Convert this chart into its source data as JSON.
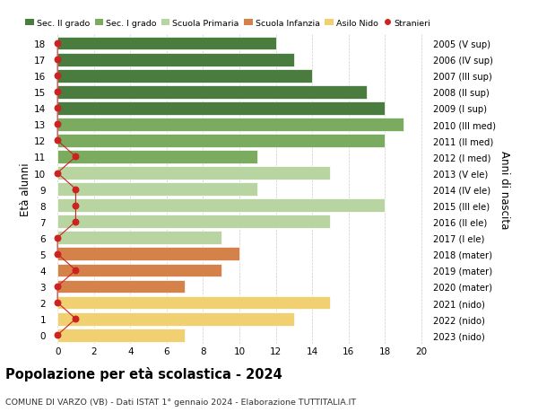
{
  "ages": [
    18,
    17,
    16,
    15,
    14,
    13,
    12,
    11,
    10,
    9,
    8,
    7,
    6,
    5,
    4,
    3,
    2,
    1,
    0
  ],
  "years": [
    "2005 (V sup)",
    "2006 (IV sup)",
    "2007 (III sup)",
    "2008 (II sup)",
    "2009 (I sup)",
    "2010 (III med)",
    "2011 (II med)",
    "2012 (I med)",
    "2013 (V ele)",
    "2014 (IV ele)",
    "2015 (III ele)",
    "2016 (II ele)",
    "2017 (I ele)",
    "2018 (mater)",
    "2019 (mater)",
    "2020 (mater)",
    "2021 (nido)",
    "2022 (nido)",
    "2023 (nido)"
  ],
  "values": [
    12,
    13,
    14,
    17,
    18,
    19,
    18,
    11,
    15,
    11,
    18,
    15,
    9,
    10,
    9,
    7,
    15,
    13,
    7
  ],
  "colors": [
    "#4a7c3f",
    "#4a7c3f",
    "#4a7c3f",
    "#4a7c3f",
    "#4a7c3f",
    "#7aab5e",
    "#7aab5e",
    "#7aab5e",
    "#b8d4a0",
    "#b8d4a0",
    "#b8d4a0",
    "#b8d4a0",
    "#b8d4a0",
    "#d4824a",
    "#d4824a",
    "#d4824a",
    "#f0d070",
    "#f0d070",
    "#f0d070"
  ],
  "stranieri_x": [
    0,
    0,
    0,
    0,
    0,
    0,
    0,
    1,
    0,
    1,
    1,
    1,
    0,
    0,
    1,
    0,
    0,
    1,
    0
  ],
  "legend_labels": [
    "Sec. II grado",
    "Sec. I grado",
    "Scuola Primaria",
    "Scuola Infanzia",
    "Asilo Nido",
    "Stranieri"
  ],
  "legend_colors": [
    "#4a7c3f",
    "#7aab5e",
    "#b8d4a0",
    "#d4824a",
    "#f0d070",
    "#cc2222"
  ],
  "title": "Popolazione per età scolastica - 2024",
  "subtitle": "COMUNE DI VARZO (VB) - Dati ISTAT 1° gennaio 2024 - Elaborazione TUTTITALIA.IT",
  "ylabel_left": "Età alunni",
  "ylabel_right": "Anni di nascita",
  "xticks": [
    0,
    2,
    4,
    6,
    8,
    10,
    12,
    14,
    16,
    18,
    20
  ],
  "bg_color": "#ffffff",
  "bar_height": 0.82,
  "stranieri_color": "#cc2222",
  "grid_color": "#cccccc"
}
